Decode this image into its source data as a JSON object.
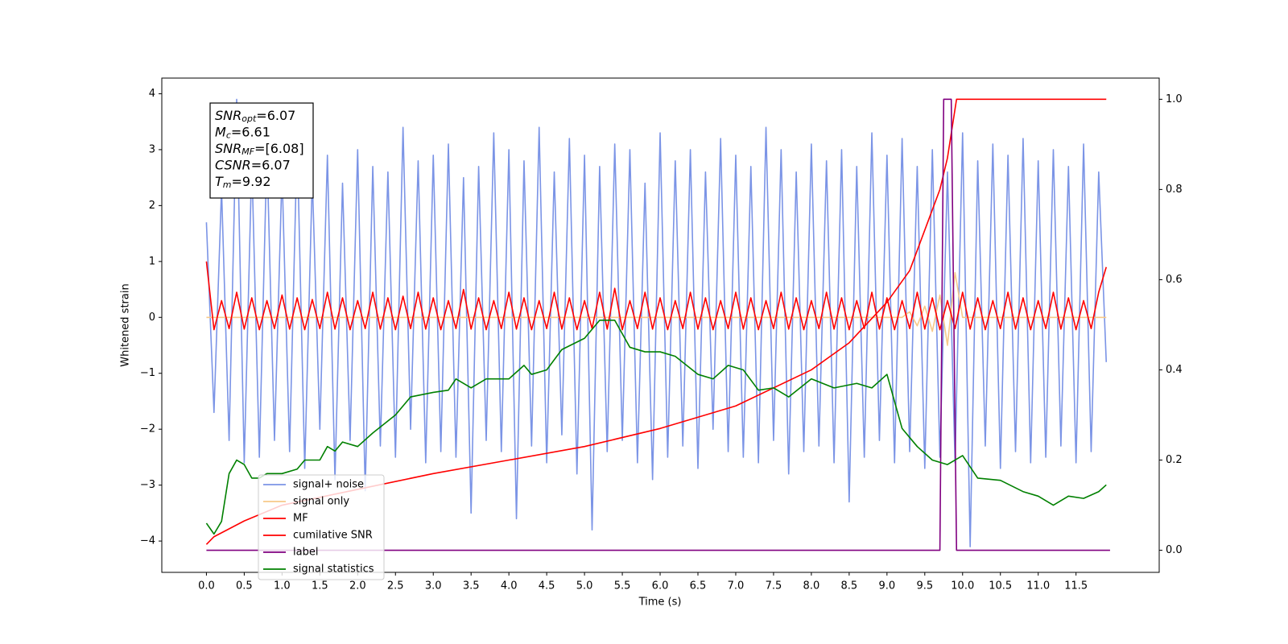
{
  "chart_data": {
    "type": "line",
    "xlabel": "Time (s)",
    "ylabel": "Whitened strain",
    "annotations": [
      {
        "symbol": "SNR",
        "subscript": "opt",
        "text": "=6.07"
      },
      {
        "symbol": "M",
        "subscript": "c",
        "text": "=6.61"
      },
      {
        "symbol": "SNR",
        "subscript": "MF",
        "text": "=[6.08]"
      },
      {
        "symbol": "CSNR",
        "subscript": null,
        "text": "=6.07"
      },
      {
        "symbol": "T",
        "subscript": "m",
        "text": "=9.92"
      }
    ],
    "xlim": [
      -0.59,
      12.6
    ],
    "xticks": [
      {
        "value": 0,
        "label": "0.0"
      },
      0.5,
      {
        "value": 1,
        "label": "1.0"
      },
      1.5,
      {
        "value": 2,
        "label": "2.0"
      },
      2.5,
      {
        "value": 3,
        "label": "3.0"
      },
      3.5,
      {
        "value": 4,
        "label": "4.0"
      },
      4.5,
      {
        "value": 5,
        "label": "5.0"
      },
      5.5,
      {
        "value": 6,
        "label": "6.0"
      },
      6.5,
      {
        "value": 7,
        "label": "7.0"
      },
      7.5,
      {
        "value": 8,
        "label": "8.0"
      },
      8.5,
      {
        "value": 9,
        "label": "9.0"
      },
      9.5,
      {
        "value": 10,
        "label": "10.0"
      },
      10.5,
      {
        "value": 11,
        "label": "11.0"
      },
      11.5
    ],
    "ylim": [
      -4.56,
      4.28
    ],
    "yticks": [
      {
        "value": -4,
        "label": "−4"
      },
      {
        "value": -3,
        "label": "−3"
      },
      {
        "value": -2,
        "label": "−2"
      },
      {
        "value": -1,
        "label": "−1"
      },
      0,
      1,
      2,
      3,
      4
    ],
    "y2lim": [
      -0.049,
      1.047
    ],
    "y2ticks": [
      {
        "value": 0,
        "label": "0.0"
      },
      0.2,
      0.4,
      0.6,
      0.8,
      {
        "value": 1,
        "label": "1.0"
      }
    ],
    "x": [
      0,
      0.1,
      0.2,
      0.3,
      0.4,
      0.5,
      0.6,
      0.7,
      0.8,
      0.9,
      1,
      1.1,
      1.2,
      1.3,
      1.4,
      1.5,
      1.6,
      1.7,
      1.8,
      1.9,
      2,
      2.1,
      2.2,
      2.3,
      2.4,
      2.5,
      2.6,
      2.7,
      2.8,
      2.9,
      3,
      3.1,
      3.2,
      3.3,
      3.4,
      3.5,
      3.6,
      3.7,
      3.8,
      3.9,
      4,
      4.1,
      4.2,
      4.3,
      4.4,
      4.5,
      4.6,
      4.7,
      4.8,
      4.9,
      5,
      5.1,
      5.2,
      5.3,
      5.4,
      5.5,
      5.6,
      5.7,
      5.8,
      5.9,
      6,
      6.1,
      6.2,
      6.3,
      6.4,
      6.5,
      6.6,
      6.7,
      6.8,
      6.9,
      7,
      7.1,
      7.2,
      7.3,
      7.4,
      7.5,
      7.6,
      7.7,
      7.8,
      7.9,
      8,
      8.1,
      8.2,
      8.3,
      8.4,
      8.5,
      8.6,
      8.7,
      8.8,
      8.9,
      9,
      9.1,
      9.2,
      9.3,
      9.4,
      9.5,
      9.6,
      9.7,
      9.8,
      9.9,
      10,
      10.1,
      10.2,
      10.3,
      10.4,
      10.5,
      10.6,
      10.7,
      10.8,
      10.9,
      11,
      11.1,
      11.2,
      11.3,
      11.4,
      11.5,
      11.6,
      11.7,
      11.8,
      11.9
    ],
    "series": [
      {
        "name": "signal+ noise",
        "color": "#7b94e6",
        "values": [
          1.7,
          -1.7,
          2.3,
          -2.2,
          3.9,
          -2.6,
          2.8,
          -2.5,
          3.0,
          -2.2,
          2.6,
          -2.4,
          3.2,
          -2.7,
          2.5,
          -2.0,
          2.9,
          -2.9,
          2.4,
          -2.2,
          3.0,
          -3.1,
          2.7,
          -2.3,
          2.6,
          -2.5,
          3.4,
          -2.0,
          2.8,
          -2.6,
          2.9,
          -2.4,
          3.1,
          -2.5,
          2.5,
          -3.5,
          2.7,
          -2.2,
          3.3,
          -2.4,
          3.0,
          -3.6,
          2.8,
          -2.3,
          3.4,
          -2.6,
          2.6,
          -2.1,
          3.2,
          -2.8,
          2.9,
          -3.8,
          2.7,
          -2.4,
          3.1,
          -2.2,
          3.0,
          -2.6,
          2.4,
          -2.9,
          3.3,
          -2.5,
          2.8,
          -2.3,
          3.0,
          -2.7,
          2.6,
          -2.0,
          3.2,
          -2.4,
          2.9,
          -2.5,
          2.7,
          -2.6,
          3.4,
          -2.2,
          3.0,
          -2.8,
          2.6,
          -2.4,
          3.1,
          -2.3,
          2.8,
          -2.6,
          3.0,
          -3.3,
          2.7,
          -2.5,
          3.3,
          -2.2,
          2.9,
          -2.6,
          3.2,
          -2.4,
          2.7,
          -2.7,
          3.0,
          -2.5,
          2.6,
          -2.6,
          3.3,
          -4.1,
          2.8,
          -2.3,
          3.1,
          -2.7,
          2.9,
          -2.4,
          3.2,
          -2.6,
          2.8,
          -2.5,
          3.0,
          -2.3,
          2.7,
          -2.6,
          3.1,
          -2.4,
          2.6,
          -0.8
        ]
      },
      {
        "name": "signal only",
        "color": "#f7c98a",
        "values": [
          0,
          0,
          0,
          0,
          0,
          0,
          0,
          0,
          0,
          0,
          0,
          0,
          0,
          0,
          0,
          0,
          0,
          0,
          0,
          0,
          0,
          0,
          0,
          0,
          0,
          0,
          0,
          0,
          0,
          0,
          0,
          0,
          0,
          0,
          0,
          0,
          0,
          0,
          0,
          0,
          0,
          0,
          0,
          0,
          0,
          0,
          0,
          0,
          0,
          0,
          0,
          0,
          0,
          0,
          0,
          0,
          0,
          0,
          0,
          0,
          0,
          0,
          0,
          0,
          0,
          0,
          0,
          0,
          0,
          0,
          0,
          0,
          0,
          0,
          0,
          0,
          0,
          0,
          0,
          0,
          0,
          0,
          0,
          0,
          0,
          0,
          0,
          0,
          0,
          0,
          0,
          0,
          0,
          0.1,
          -0.15,
          0.2,
          -0.25,
          0.4,
          -0.5,
          0.8,
          0,
          0,
          0,
          0,
          0,
          0,
          0,
          0,
          0,
          0,
          0,
          0,
          0,
          0,
          0,
          0,
          0,
          0,
          0,
          0
        ]
      },
      {
        "name": "MF",
        "color": "#ff0000",
        "values": [
          1.0,
          -0.22,
          0.3,
          -0.2,
          0.45,
          -0.21,
          0.35,
          -0.22,
          0.3,
          -0.2,
          0.4,
          -0.21,
          0.35,
          -0.22,
          0.32,
          -0.2,
          0.45,
          -0.21,
          0.35,
          -0.22,
          0.3,
          -0.2,
          0.45,
          -0.21,
          0.35,
          -0.22,
          0.38,
          -0.2,
          0.45,
          -0.21,
          0.35,
          -0.22,
          0.3,
          -0.2,
          0.5,
          -0.21,
          0.35,
          -0.22,
          0.3,
          -0.2,
          0.45,
          -0.21,
          0.35,
          -0.22,
          0.3,
          -0.2,
          0.45,
          -0.21,
          0.35,
          -0.22,
          0.3,
          -0.2,
          0.45,
          -0.21,
          0.52,
          -0.22,
          0.3,
          -0.2,
          0.45,
          -0.21,
          0.35,
          -0.22,
          0.3,
          -0.2,
          0.45,
          -0.21,
          0.35,
          -0.22,
          0.3,
          -0.2,
          0.45,
          -0.21,
          0.35,
          -0.22,
          0.3,
          -0.2,
          0.45,
          -0.21,
          0.35,
          -0.22,
          0.3,
          -0.2,
          0.45,
          -0.21,
          0.35,
          -0.22,
          0.3,
          -0.2,
          0.45,
          -0.21,
          0.35,
          -0.22,
          0.3,
          -0.2,
          0.45,
          -0.21,
          0.35,
          -0.22,
          0.3,
          -0.2,
          0.45,
          -0.21,
          0.35,
          -0.22,
          0.3,
          -0.2,
          0.45,
          -0.21,
          0.35,
          -0.22,
          0.3,
          -0.2,
          0.45,
          -0.21,
          0.35,
          -0.22,
          0.3,
          -0.2,
          0.45,
          0.9
        ]
      },
      {
        "name": "cumilative SNR",
        "color": "#ff0000",
        "axis": "y2",
        "x": [
          0,
          0.1,
          0.5,
          1,
          2,
          3,
          4,
          5,
          6,
          7,
          8,
          8.5,
          9,
          9.3,
          9.5,
          9.7,
          9.8,
          9.92,
          10,
          11,
          11.9
        ],
        "values": [
          0.013,
          0.03,
          0.065,
          0.1,
          0.135,
          0.17,
          0.2,
          0.23,
          0.27,
          0.32,
          0.4,
          0.46,
          0.55,
          0.62,
          0.71,
          0.8,
          0.87,
          1.0,
          1.0,
          1.0,
          1.0
        ]
      },
      {
        "name": "label",
        "color": "#800080",
        "axis": "y2",
        "x": [
          0,
          9.7,
          9.75,
          9.85,
          9.92,
          11.95
        ],
        "values": [
          0,
          0,
          1,
          1,
          0,
          0
        ]
      },
      {
        "name": "signal statistics",
        "color": "#008000",
        "axis": "y2",
        "x": [
          0,
          0.1,
          0.2,
          0.3,
          0.4,
          0.5,
          0.6,
          0.7,
          0.8,
          1.0,
          1.2,
          1.3,
          1.5,
          1.6,
          1.7,
          1.8,
          2.0,
          2.2,
          2.5,
          2.7,
          3.0,
          3.2,
          3.3,
          3.5,
          3.7,
          4.0,
          4.2,
          4.3,
          4.5,
          4.7,
          5.0,
          5.2,
          5.4,
          5.6,
          5.8,
          6.0,
          6.2,
          6.5,
          6.7,
          6.9,
          7.1,
          7.3,
          7.5,
          7.7,
          8.0,
          8.3,
          8.6,
          8.8,
          9.0,
          9.2,
          9.4,
          9.6,
          9.8,
          10.0,
          10.2,
          10.5,
          10.8,
          11.0,
          11.2,
          11.4,
          11.6,
          11.8,
          11.9
        ],
        "values": [
          0.06,
          0.036,
          0.064,
          0.17,
          0.2,
          0.19,
          0.16,
          0.16,
          0.17,
          0.17,
          0.18,
          0.2,
          0.2,
          0.23,
          0.22,
          0.24,
          0.23,
          0.26,
          0.3,
          0.34,
          0.35,
          0.355,
          0.38,
          0.36,
          0.38,
          0.38,
          0.41,
          0.39,
          0.4,
          0.445,
          0.47,
          0.51,
          0.51,
          0.45,
          0.44,
          0.44,
          0.43,
          0.39,
          0.38,
          0.41,
          0.4,
          0.355,
          0.36,
          0.34,
          0.38,
          0.36,
          0.37,
          0.36,
          0.39,
          0.27,
          0.23,
          0.2,
          0.19,
          0.21,
          0.16,
          0.155,
          0.13,
          0.12,
          0.1,
          0.12,
          0.115,
          0.13,
          0.145
        ]
      }
    ]
  }
}
